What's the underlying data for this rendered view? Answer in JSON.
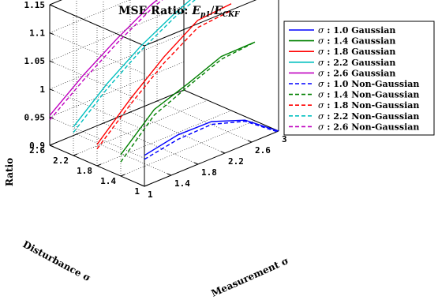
{
  "chart_data": {
    "type": "line",
    "title_prefix": "MSE Ratio: ",
    "title_math": "E",
    "title_sub1": "p1",
    "title_slash": "/",
    "title_math2": "E",
    "title_sub2": "CKF",
    "xlabel": "Measurement σ",
    "ylabel": "Disturbance σ",
    "zlabel": "Ratio",
    "xlim": [
      1,
      3
    ],
    "ylim": [
      1,
      2.6
    ],
    "zlim": [
      0.9,
      1.15
    ],
    "xticks": [
      "1",
      "1.4",
      "1.8",
      "2.2",
      "2.6",
      "3"
    ],
    "yticks": [
      "1",
      "1.4",
      "1.8",
      "2.2",
      "2.6"
    ],
    "zticks": [
      "0.9",
      "0.95",
      "1",
      "1.05",
      "1.1",
      "1.15"
    ],
    "grid": true,
    "legend_position": "outside-right",
    "series": [
      {
        "name": "σ : 1.0 Gaussian",
        "sigma": 1.0,
        "style": "solid",
        "color": "#0000ff",
        "x": [
          1.0,
          1.5,
          2.0,
          2.5,
          3.0
        ],
        "z": [
          0.955,
          0.967,
          0.966,
          0.944,
          0.9
        ]
      },
      {
        "name": "σ : 1.4 Gaussian",
        "sigma": 1.4,
        "style": "solid",
        "color": "#008000",
        "x": [
          1.0,
          1.5,
          2.0,
          2.5,
          3.0
        ],
        "z": [
          0.938,
          0.994,
          1.015,
          1.039,
          1.04
        ]
      },
      {
        "name": "σ : 1.8 Gaussian",
        "sigma": 1.8,
        "style": "solid",
        "color": "#ff0000",
        "x": [
          1.0,
          1.5,
          2.0,
          2.5,
          3.0
        ],
        "z": [
          0.938,
          0.995,
          1.045,
          1.085,
          1.09
        ]
      },
      {
        "name": "σ : 2.2 Gaussian",
        "sigma": 2.2,
        "style": "solid",
        "color": "#00bfbf",
        "x": [
          1.0,
          1.5,
          2.0,
          2.5,
          3.0
        ],
        "z": [
          0.951,
          1.003,
          1.045,
          1.078,
          1.105
        ]
      },
      {
        "name": "σ : 2.6 Gaussian",
        "sigma": 2.6,
        "style": "solid",
        "color": "#bf00bf",
        "x": [
          1.0,
          1.5,
          2.0,
          2.5,
          3.0
        ],
        "z": [
          0.953,
          1.0,
          1.04,
          1.075,
          1.1
        ]
      },
      {
        "name": "σ : 1.0 Non-Gaussian",
        "sigma": 1.0,
        "style": "dashed",
        "color": "#0000ff",
        "x": [
          1.0,
          1.5,
          2.0,
          2.5,
          3.0
        ],
        "z": [
          0.948,
          0.959,
          0.961,
          0.942,
          0.898
        ]
      },
      {
        "name": "σ : 1.4 Non-Gaussian",
        "sigma": 1.4,
        "style": "dashed",
        "color": "#008000",
        "x": [
          1.0,
          1.5,
          2.0,
          2.5,
          3.0
        ],
        "z": [
          0.925,
          0.984,
          1.01,
          1.034,
          1.04
        ]
      },
      {
        "name": "σ : 1.8 Non-Gaussian",
        "sigma": 1.8,
        "style": "dashed",
        "color": "#ff0000",
        "x": [
          1.0,
          1.5,
          2.0,
          2.5,
          3.0
        ],
        "z": [
          0.93,
          0.985,
          1.034,
          1.072,
          1.078
        ]
      },
      {
        "name": "σ : 2.2 Non-Gaussian",
        "sigma": 2.2,
        "style": "dashed",
        "color": "#00bfbf",
        "x": [
          1.0,
          1.5,
          2.0,
          2.5,
          3.0
        ],
        "z": [
          0.941,
          0.994,
          1.037,
          1.071,
          1.098
        ]
      },
      {
        "name": "σ : 2.6 Non-Gaussian",
        "sigma": 2.6,
        "style": "dashed",
        "color": "#bf00bf",
        "x": [
          1.0,
          1.5,
          2.0,
          2.5,
          3.0
        ],
        "z": [
          0.945,
          0.991,
          1.032,
          1.067,
          1.093
        ]
      }
    ]
  },
  "legend": {
    "items": [
      {
        "sym": "σ",
        "num": " : 1.0 ",
        "kind": "Gaussian"
      },
      {
        "sym": "σ",
        "num": " : 1.4 ",
        "kind": "Gaussian"
      },
      {
        "sym": "σ",
        "num": " : 1.8 ",
        "kind": "Gaussian"
      },
      {
        "sym": "σ",
        "num": " : 2.2 ",
        "kind": "Gaussian"
      },
      {
        "sym": "σ",
        "num": " : 2.6 ",
        "kind": "Gaussian"
      },
      {
        "sym": "σ",
        "num": " : 1.0 ",
        "kind": "Non-Gaussian"
      },
      {
        "sym": "σ",
        "num": " : 1.4 ",
        "kind": "Non-Gaussian"
      },
      {
        "sym": "σ",
        "num": " : 1.8 ",
        "kind": "Non-Gaussian"
      },
      {
        "sym": "σ",
        "num": " : 2.2 ",
        "kind": "Non-Gaussian"
      },
      {
        "sym": "σ",
        "num": " : 2.6 ",
        "kind": "Non-Gaussian"
      }
    ]
  }
}
